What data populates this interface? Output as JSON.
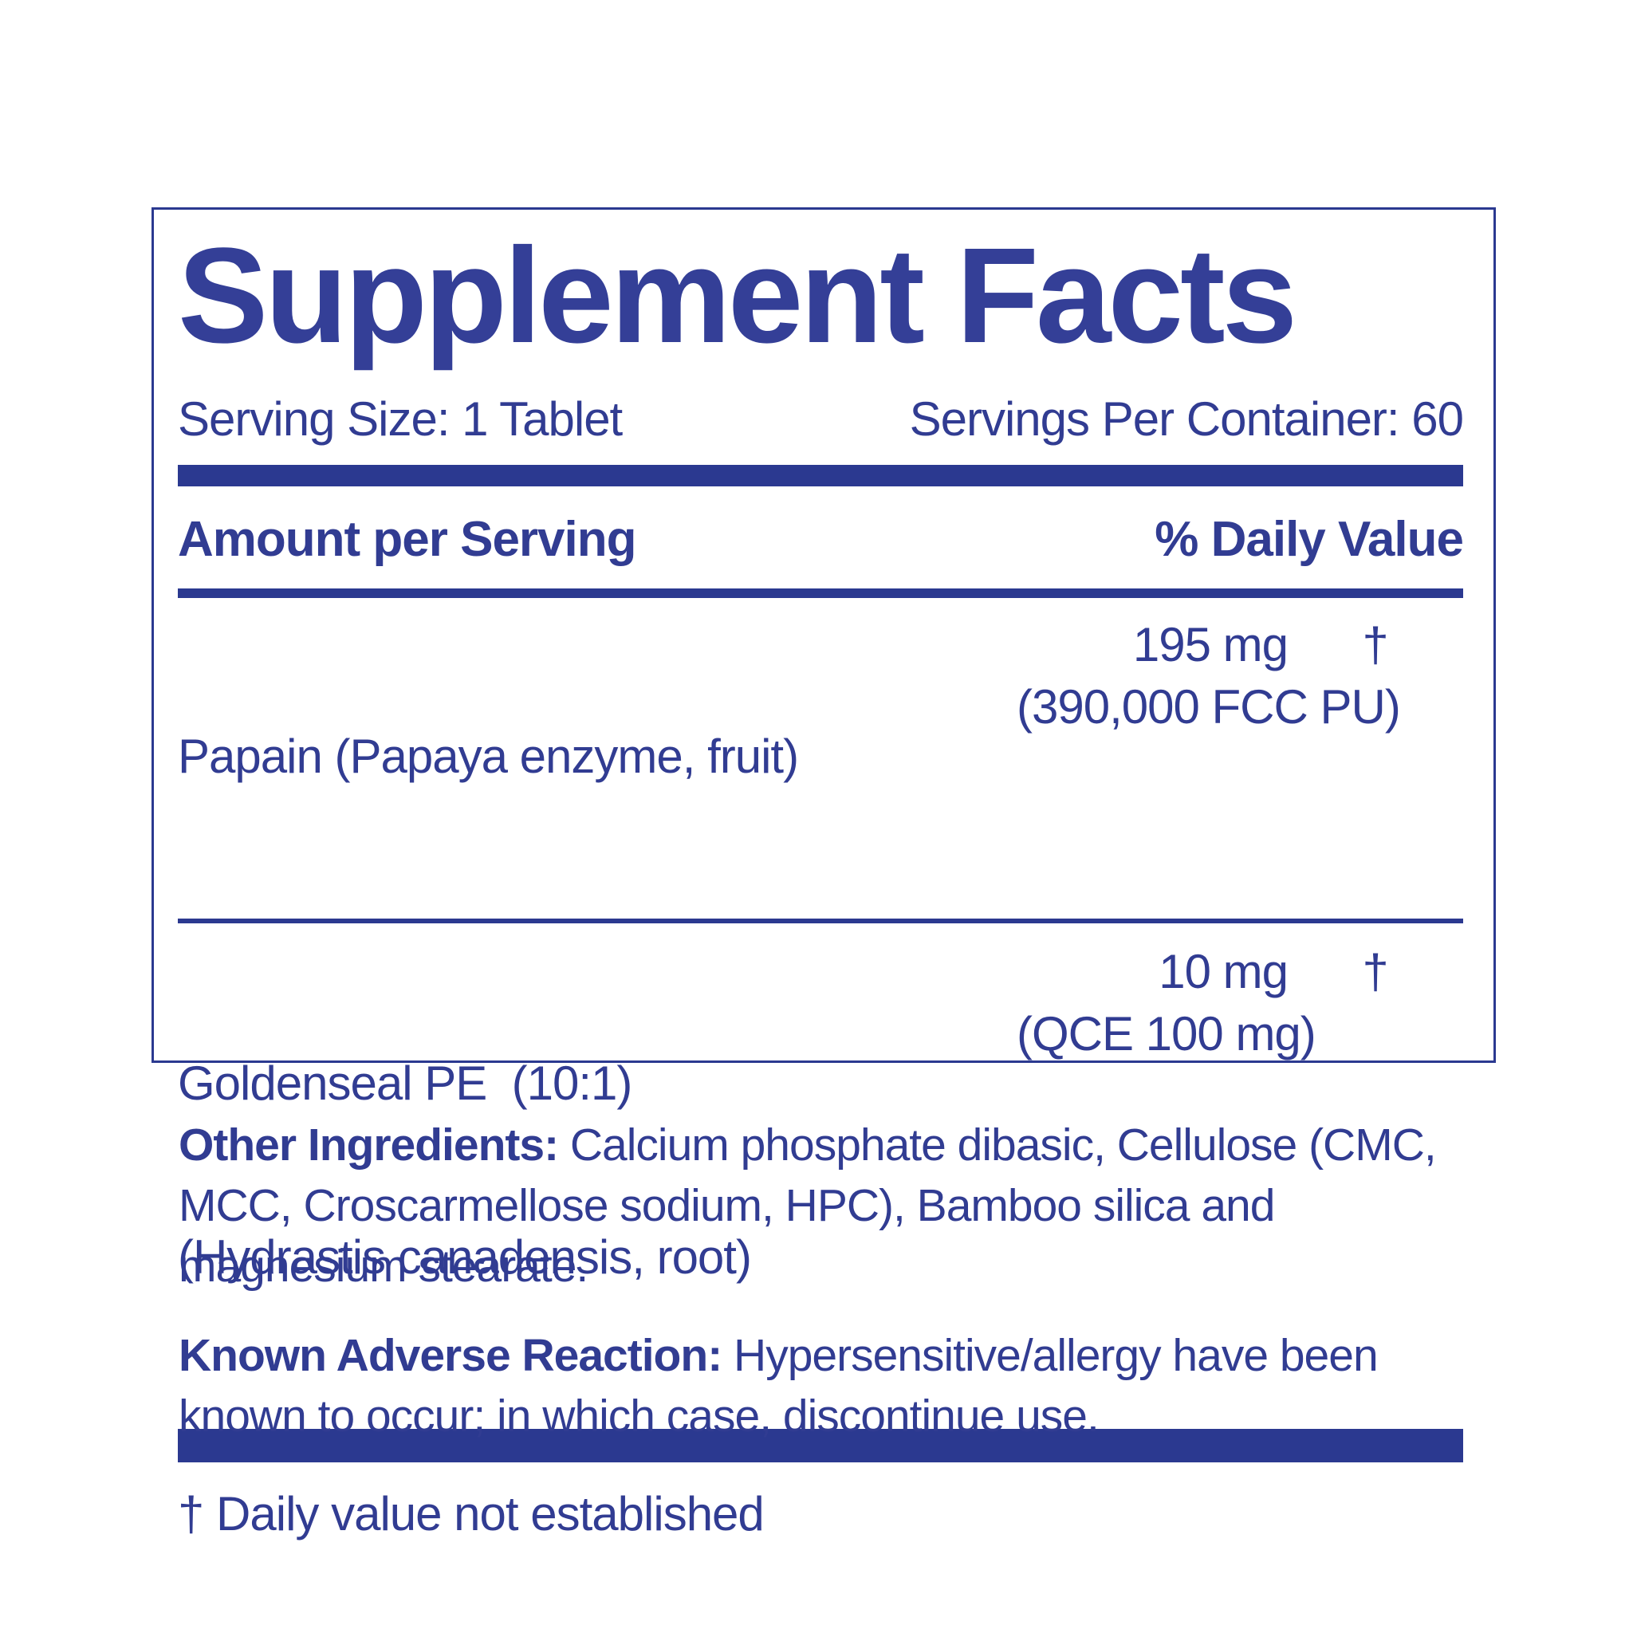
{
  "label": {
    "title": "Supplement Facts",
    "serving_size": "Serving Size: 1 Tablet",
    "servings_per_container": "Servings Per Container: 60",
    "columns": {
      "amount_header": "Amount per Serving",
      "daily_value_header": "% Daily Value"
    },
    "rows": [
      {
        "name": "Papain (Papaya enzyme, fruit)",
        "name_line2": "",
        "amount": "195 mg",
        "amount_line2": "(390,000 FCC PU)",
        "daily_value": "†"
      },
      {
        "name": "Goldenseal PE  (10:1)",
        "name_line2": "(Hydrastis canadensis, root)",
        "amount": "10 mg",
        "amount_line2": "(QCE 100 mg)",
        "daily_value": "†"
      }
    ],
    "footnote": "† Daily value not established"
  },
  "other_ingredients": {
    "lead": "Other Ingredients:",
    "line1_rest": " Calcium phosphate dibasic, Cellulose (CMC,",
    "line2": "MCC, Croscarmellose sodium, HPC), Bamboo silica and",
    "line3": "magnesium stearate."
  },
  "adverse_reaction": {
    "lead": "Known Adverse Reaction:",
    "line1_rest": " Hypersensitive/allergy have been",
    "line2": "known to occur; in which case, discontinue use."
  },
  "colors": {
    "text_blue": "#313c92",
    "bar_blue": "#2b3990",
    "background": "#ffffff"
  }
}
